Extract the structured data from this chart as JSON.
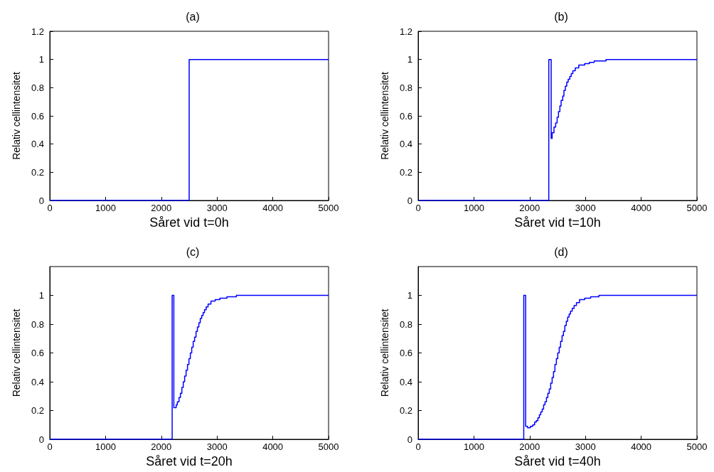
{
  "chart_data": [
    {
      "type": "step",
      "title": "(a)",
      "xlabel": "Såret vid t=0h",
      "ylabel": "Relativ cellintensitet",
      "xlim": [
        0,
        5000
      ],
      "xticks": [
        0,
        1000,
        2000,
        3000,
        4000,
        5000
      ],
      "ylim": [
        0,
        1.2
      ],
      "yticks": [
        0,
        0.2,
        0.4,
        0.6,
        0.8,
        1,
        1.2
      ],
      "grid": false,
      "marker": "none",
      "line_style": "solid",
      "series": [
        {
          "color": "#0000ff",
          "x": [
            0,
            2500,
            5000
          ],
          "values": [
            0,
            1,
            1
          ]
        }
      ]
    },
    {
      "type": "step",
      "title": "(b)",
      "xlabel": "Såret vid t=10h",
      "ylabel": "Relativ cellintensitet",
      "xlim": [
        0,
        5000
      ],
      "xticks": [
        0,
        1000,
        2000,
        3000,
        4000,
        5000
      ],
      "ylim": [
        0,
        1.2
      ],
      "yticks": [
        0,
        0.2,
        0.4,
        0.6,
        0.8,
        1,
        1.2
      ],
      "grid": false,
      "marker": "none",
      "line_style": "solid",
      "series": [
        {
          "color": "#0000ff",
          "x": [
            0,
            2343,
            2386,
            2403,
            2436,
            2466,
            2492,
            2517,
            2542,
            2564,
            2593,
            2614,
            2640,
            2665,
            2691,
            2720,
            2746,
            2775,
            2818,
            2881,
            2987,
            3072,
            3157,
            3284,
            3369,
            5000
          ],
          "values": [
            0,
            1,
            0.44,
            0.48,
            0.52,
            0.55,
            0.59,
            0.63,
            0.67,
            0.71,
            0.74,
            0.78,
            0.81,
            0.84,
            0.86,
            0.88,
            0.9,
            0.92,
            0.94,
            0.96,
            0.97,
            0.98,
            0.99,
            0.99,
            1,
            1
          ]
        }
      ]
    },
    {
      "type": "step",
      "title": "(c)",
      "xlabel": "Såret vid t=20h",
      "ylabel": "Relativ cellintensitet",
      "xlim": [
        0,
        5000
      ],
      "xticks": [
        0,
        1000,
        2000,
        3000,
        4000,
        5000
      ],
      "ylim": [
        0,
        1.2
      ],
      "yticks": [
        0,
        0.2,
        0.4,
        0.6,
        0.8,
        1
      ],
      "grid": false,
      "marker": "none",
      "line_style": "solid",
      "series": [
        {
          "color": "#0000ff",
          "x": [
            0,
            2195,
            2225,
            2267,
            2288,
            2318,
            2343,
            2369,
            2394,
            2419,
            2445,
            2470,
            2496,
            2521,
            2546,
            2572,
            2597,
            2623,
            2648,
            2674,
            2699,
            2725,
            2750,
            2775,
            2805,
            2839,
            2890,
            2966,
            3051,
            3178,
            3347,
            5000
          ],
          "values": [
            0,
            1,
            0.22,
            0.24,
            0.26,
            0.29,
            0.32,
            0.36,
            0.4,
            0.44,
            0.48,
            0.52,
            0.56,
            0.6,
            0.64,
            0.68,
            0.71,
            0.75,
            0.78,
            0.81,
            0.84,
            0.86,
            0.88,
            0.9,
            0.92,
            0.94,
            0.96,
            0.97,
            0.98,
            0.99,
            1,
            1
          ]
        }
      ]
    },
    {
      "type": "step",
      "title": "(d)",
      "xlabel": "Såret vid t=40h",
      "ylabel": "Relativ cellintensitet",
      "xlim": [
        0,
        5000
      ],
      "xticks": [
        0,
        1000,
        2000,
        3000,
        4000,
        5000
      ],
      "ylim": [
        0,
        1.2
      ],
      "yticks": [
        0,
        0.2,
        0.4,
        0.6,
        0.8,
        1
      ],
      "grid": false,
      "marker": "none",
      "line_style": "solid",
      "series": [
        {
          "color": "#0000ff",
          "x": [
            0,
            1894,
            1928,
            1962,
            2013,
            2055,
            2089,
            2119,
            2148,
            2174,
            2199,
            2225,
            2250,
            2275,
            2301,
            2326,
            2352,
            2377,
            2403,
            2428,
            2453,
            2479,
            2504,
            2530,
            2555,
            2581,
            2606,
            2631,
            2657,
            2682,
            2708,
            2733,
            2763,
            2797,
            2839,
            2894,
            2987,
            3093,
            3242,
            5000
          ],
          "values": [
            0,
            1,
            0.09,
            0.08,
            0.09,
            0.1,
            0.12,
            0.13,
            0.15,
            0.17,
            0.19,
            0.21,
            0.24,
            0.26,
            0.29,
            0.32,
            0.35,
            0.39,
            0.43,
            0.47,
            0.52,
            0.56,
            0.6,
            0.64,
            0.68,
            0.72,
            0.75,
            0.79,
            0.82,
            0.85,
            0.87,
            0.89,
            0.91,
            0.93,
            0.95,
            0.97,
            0.98,
            0.99,
            1,
            1
          ]
        }
      ]
    }
  ]
}
